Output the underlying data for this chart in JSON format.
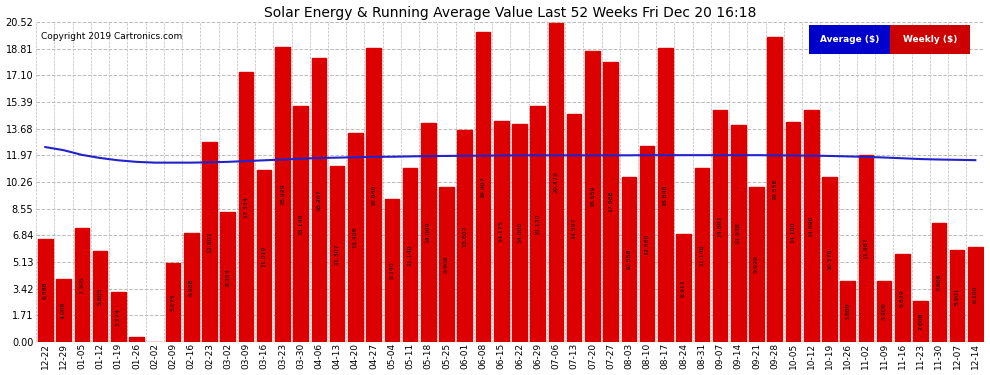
{
  "title": "Solar Energy & Running Average Value Last 52 Weeks Fri Dec 20 16:18",
  "copyright": "Copyright 2019 Cartronics.com",
  "bar_color": "#dd0000",
  "avg_line_color": "#2222cc",
  "background_color": "#ffffff",
  "plot_bg_color": "#ffffff",
  "grid_color": "#bbbbbb",
  "ylim": [
    0,
    20.52
  ],
  "yticks": [
    0.0,
    1.71,
    3.42,
    5.13,
    6.84,
    8.55,
    10.26,
    11.97,
    13.68,
    15.39,
    17.1,
    18.81,
    20.52
  ],
  "labels": [
    "12-22",
    "12-29",
    "01-05",
    "01-12",
    "01-19",
    "01-26",
    "02-02",
    "02-09",
    "02-16",
    "02-23",
    "03-02",
    "03-09",
    "03-16",
    "03-23",
    "03-30",
    "04-06",
    "04-13",
    "04-20",
    "04-27",
    "05-04",
    "05-11",
    "05-18",
    "05-25",
    "06-01",
    "06-08",
    "06-15",
    "06-22",
    "06-29",
    "07-06",
    "07-13",
    "07-20",
    "07-27",
    "08-03",
    "08-10",
    "08-17",
    "08-24",
    "08-31",
    "09-07",
    "09-14",
    "09-21",
    "09-28",
    "10-05",
    "10-12",
    "10-19",
    "10-26",
    "11-02",
    "11-09",
    "11-16",
    "11-23",
    "11-30",
    "12-07",
    "12-14"
  ],
  "values": [
    6.588,
    4.008,
    7.305,
    5.805,
    3.174,
    0.332,
    0.0,
    5.075,
    6.988,
    12.802,
    8.354,
    17.334,
    11.019,
    18.929,
    15.148,
    18.207,
    11.307,
    13.408,
    18.84,
    9.14,
    11.14,
    14.069,
    9.908,
    13.607,
    19.907,
    14.175,
    14.005,
    15.12,
    20.472,
    14.597,
    18.659,
    17.988,
    10.558,
    12.56,
    18.84,
    6.913,
    11.148,
    14.892,
    13.938,
    9.929,
    19.558,
    14.1,
    14.896,
    10.576,
    3.889,
    11.987,
    3.909,
    5.629,
    2.608,
    7.606,
    5.901,
    6.1
  ],
  "avg_values": [
    12.5,
    12.3,
    12.0,
    11.8,
    11.65,
    11.55,
    11.5,
    11.5,
    11.5,
    11.52,
    11.55,
    11.6,
    11.65,
    11.7,
    11.75,
    11.8,
    11.82,
    11.85,
    11.87,
    11.88,
    11.9,
    11.92,
    11.93,
    11.94,
    11.95,
    11.96,
    11.97,
    11.97,
    11.97,
    11.97,
    11.97,
    11.97,
    11.97,
    11.98,
    11.98,
    11.98,
    11.98,
    11.98,
    11.98,
    11.98,
    11.97,
    11.96,
    11.95,
    11.93,
    11.9,
    11.87,
    11.83,
    11.78,
    11.73,
    11.7,
    11.68,
    11.66
  ],
  "legend_avg_label": "Average ($)",
  "legend_weekly_label": "Weekly ($)",
  "legend_avg_bg": "#0000cc",
  "legend_weekly_bg": "#cc0000",
  "legend_text_color": "#ffffff"
}
